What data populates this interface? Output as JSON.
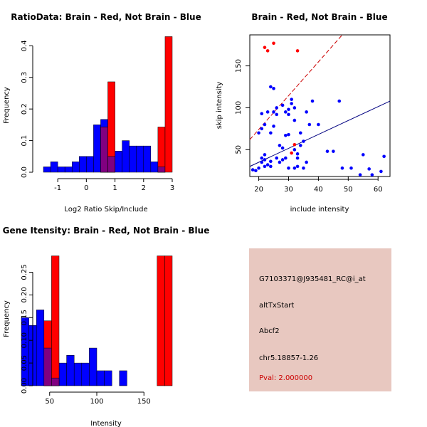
{
  "chart_data": [
    {
      "type": "bar",
      "title": "RatioData: Brain - Red, Not Brain - Blue",
      "xlabel": "Log2 Ratio Skip/Include",
      "ylabel": "Frequency",
      "xlim": [
        -1.6,
        3.0
      ],
      "ylim": [
        0,
        0.43
      ],
      "xticks": [
        -1,
        0,
        1,
        2,
        3
      ],
      "yticks": [
        0.0,
        0.1,
        0.2,
        0.3,
        0.4
      ],
      "ytick_labels": [
        "0.0",
        "0.1",
        "0.2",
        "0.3",
        "0.4"
      ],
      "series": [
        {
          "name": "Not Brain",
          "color": "#0000ff",
          "bins": [
            [
              -1.5,
              -1.25,
              0.017
            ],
            [
              -1.25,
              -1.0,
              0.033
            ],
            [
              -1.0,
              -0.75,
              0.017
            ],
            [
              -0.75,
              -0.5,
              0.017
            ],
            [
              -0.5,
              -0.25,
              0.033
            ],
            [
              -0.25,
              0.0,
              0.05
            ],
            [
              0.0,
              0.25,
              0.05
            ],
            [
              0.25,
              0.5,
              0.15
            ],
            [
              0.5,
              0.75,
              0.167
            ],
            [
              0.75,
              1.0,
              0.05
            ],
            [
              1.0,
              1.25,
              0.067
            ],
            [
              1.25,
              1.5,
              0.1
            ],
            [
              1.5,
              1.75,
              0.083
            ],
            [
              1.75,
              2.0,
              0.083
            ],
            [
              2.0,
              2.25,
              0.083
            ],
            [
              2.25,
              2.5,
              0.033
            ],
            [
              2.5,
              2.75,
              0.017
            ]
          ]
        },
        {
          "name": "Brain",
          "color": "#ff0000",
          "bins": [
            [
              0.5,
              0.75,
              0.143
            ],
            [
              0.75,
              1.0,
              0.286
            ],
            [
              2.5,
              2.75,
              0.143
            ],
            [
              2.75,
              3.0,
              0.429
            ]
          ]
        }
      ]
    },
    {
      "type": "scatter",
      "title": "Brain - Red, Not Brain - Blue",
      "xlabel": "include intensity",
      "ylabel": "skip intensity",
      "xlim": [
        17,
        64
      ],
      "ylim": [
        18,
        187
      ],
      "xticks": [
        20,
        30,
        40,
        50,
        60
      ],
      "yticks": [
        50,
        100,
        150
      ],
      "series": [
        {
          "name": "Not Brain",
          "color": "#0000ff",
          "points": [
            [
              18,
              26
            ],
            [
              19,
              25
            ],
            [
              20,
              28
            ],
            [
              21,
              35
            ],
            [
              21,
              40
            ],
            [
              22,
              38
            ],
            [
              20,
              70
            ],
            [
              21,
              75
            ],
            [
              22,
              80
            ],
            [
              23,
              95
            ],
            [
              21,
              93
            ],
            [
              22,
              44
            ],
            [
              22,
              30
            ],
            [
              23,
              32
            ],
            [
              24,
              36
            ],
            [
              24,
              30
            ],
            [
              24,
              70
            ],
            [
              24,
              125
            ],
            [
              25,
              123
            ],
            [
              25,
              95
            ],
            [
              25,
              78
            ],
            [
              26,
              100
            ],
            [
              26,
              92
            ],
            [
              27,
              55
            ],
            [
              26,
              40
            ],
            [
              27,
              35
            ],
            [
              28,
              52
            ],
            [
              28,
              38
            ],
            [
              28,
              103
            ],
            [
              29,
              95
            ],
            [
              29,
              67
            ],
            [
              29,
              40
            ],
            [
              30,
              68
            ],
            [
              30,
              28
            ],
            [
              30,
              92
            ],
            [
              30,
              98
            ],
            [
              31,
              105
            ],
            [
              31,
              110
            ],
            [
              32,
              100
            ],
            [
              32,
              85
            ],
            [
              32,
              50
            ],
            [
              32,
              28
            ],
            [
              33,
              40
            ],
            [
              33,
              45
            ],
            [
              33,
              30
            ],
            [
              34,
              55
            ],
            [
              34,
              70
            ],
            [
              35,
              60
            ],
            [
              35,
              28
            ],
            [
              36,
              35
            ],
            [
              36,
              95
            ],
            [
              37,
              80
            ],
            [
              38,
              108
            ],
            [
              40,
              80
            ],
            [
              43,
              48
            ],
            [
              45,
              48
            ],
            [
              47,
              108
            ],
            [
              48,
              28
            ],
            [
              51,
              28
            ],
            [
              54,
              20
            ],
            [
              55,
              44
            ],
            [
              57,
              27
            ],
            [
              58,
              20
            ],
            [
              61,
              24
            ],
            [
              62,
              42
            ]
          ]
        },
        {
          "name": "Brain",
          "color": "#ff0000",
          "points": [
            [
              22,
              172
            ],
            [
              23,
              168
            ],
            [
              25,
              177
            ],
            [
              31,
              46
            ],
            [
              32,
              56
            ],
            [
              33,
              168
            ]
          ]
        }
      ],
      "fit_lines": [
        {
          "name": "Not Brain fit",
          "color": "#000080",
          "style": "solid",
          "from": [
            17,
            30
          ],
          "to": [
            64,
            108
          ]
        },
        {
          "name": "Brain fit",
          "color": "#cc0000",
          "style": "dashed",
          "from": [
            17,
            62
          ],
          "to": [
            48,
            187
          ]
        }
      ]
    },
    {
      "type": "bar",
      "title": "Gene Itensity: Brain - Red, Not Brain - Blue",
      "xlabel": "Intensity",
      "ylabel": "Frequency",
      "xlim": [
        20,
        180
      ],
      "ylim": [
        0,
        0.29
      ],
      "xticks": [
        50,
        100,
        150
      ],
      "yticks": [
        0.0,
        0.05,
        0.1,
        0.15,
        0.2,
        0.25
      ],
      "ytick_labels": [
        "0.00",
        "0.05",
        "0.10",
        "0.15",
        "0.20",
        "0.25"
      ],
      "series": [
        {
          "name": "Not Brain",
          "color": "#0000ff",
          "bins": [
            [
              20,
              28,
              0.15
            ],
            [
              28,
              36,
              0.133
            ],
            [
              36,
              44,
              0.167
            ],
            [
              44,
              52,
              0.083
            ],
            [
              52,
              60,
              0.017
            ],
            [
              60,
              68,
              0.05
            ],
            [
              68,
              76,
              0.067
            ],
            [
              76,
              84,
              0.05
            ],
            [
              84,
              92,
              0.05
            ],
            [
              92,
              100,
              0.083
            ],
            [
              100,
              108,
              0.033
            ],
            [
              108,
              116,
              0.033
            ],
            [
              124,
              132,
              0.033
            ]
          ]
        },
        {
          "name": "Brain",
          "color": "#ff0000",
          "bins": [
            [
              44,
              52,
              0.143
            ],
            [
              52,
              60,
              0.286
            ],
            [
              164,
              172,
              0.286
            ],
            [
              172,
              180,
              0.286
            ]
          ]
        }
      ]
    }
  ],
  "info": {
    "probe_id": "G7103371@J935481_RC@i_at",
    "event_type": "altTxStart",
    "gene": "Abcf2",
    "location": "chr5.18857-1.26",
    "pval": "Pval: 2.000000",
    "bg_color": "#e8c8c0",
    "pval_color": "#cc0000"
  }
}
